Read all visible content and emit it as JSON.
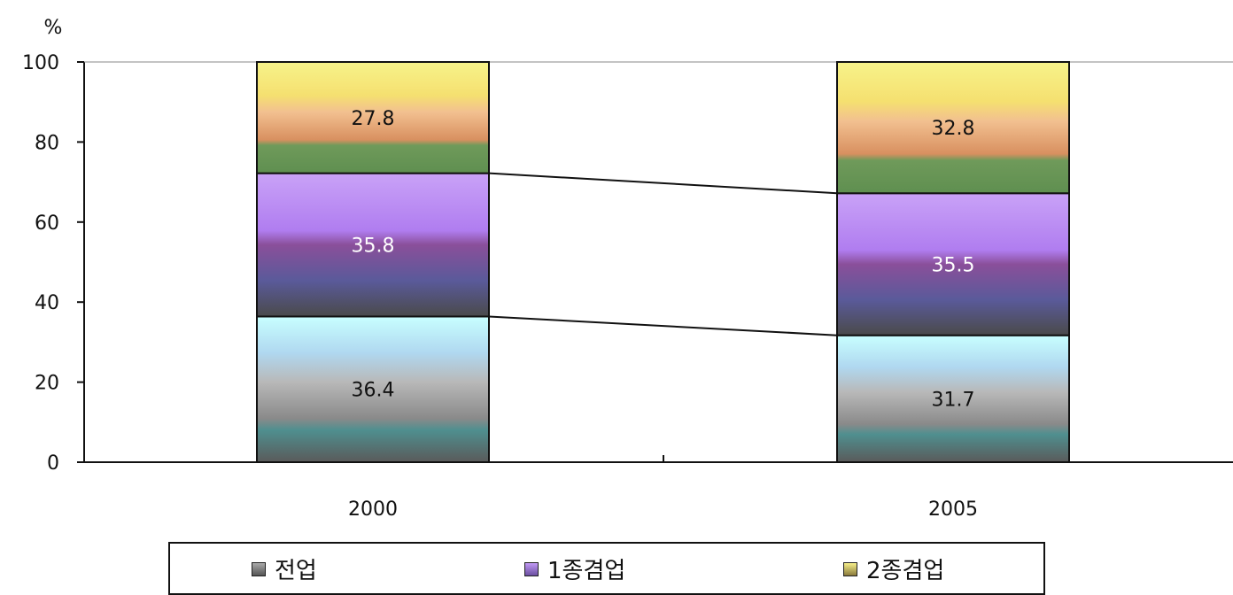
{
  "chart_data": {
    "type": "bar",
    "stacked": true,
    "ylabel": "%",
    "ylim": [
      0,
      100
    ],
    "yticks": [
      "0",
      "20",
      "40",
      "60",
      "80",
      "100"
    ],
    "categories": [
      "2000",
      "2005"
    ],
    "series": [
      {
        "name": "전업",
        "values": [
          36.4,
          31.7
        ],
        "color": "#6f6f6f",
        "label_color": "#111111"
      },
      {
        "name": "1종겸업",
        "values": [
          35.8,
          35.5
        ],
        "color": "#9a6fd6",
        "label_color": "#ffffff"
      },
      {
        "name": "2종겸업",
        "values": [
          27.8,
          32.8
        ],
        "color": "#e8d46a",
        "label_color": "#111111"
      }
    ],
    "grid": false,
    "legend_position": "bottom"
  }
}
